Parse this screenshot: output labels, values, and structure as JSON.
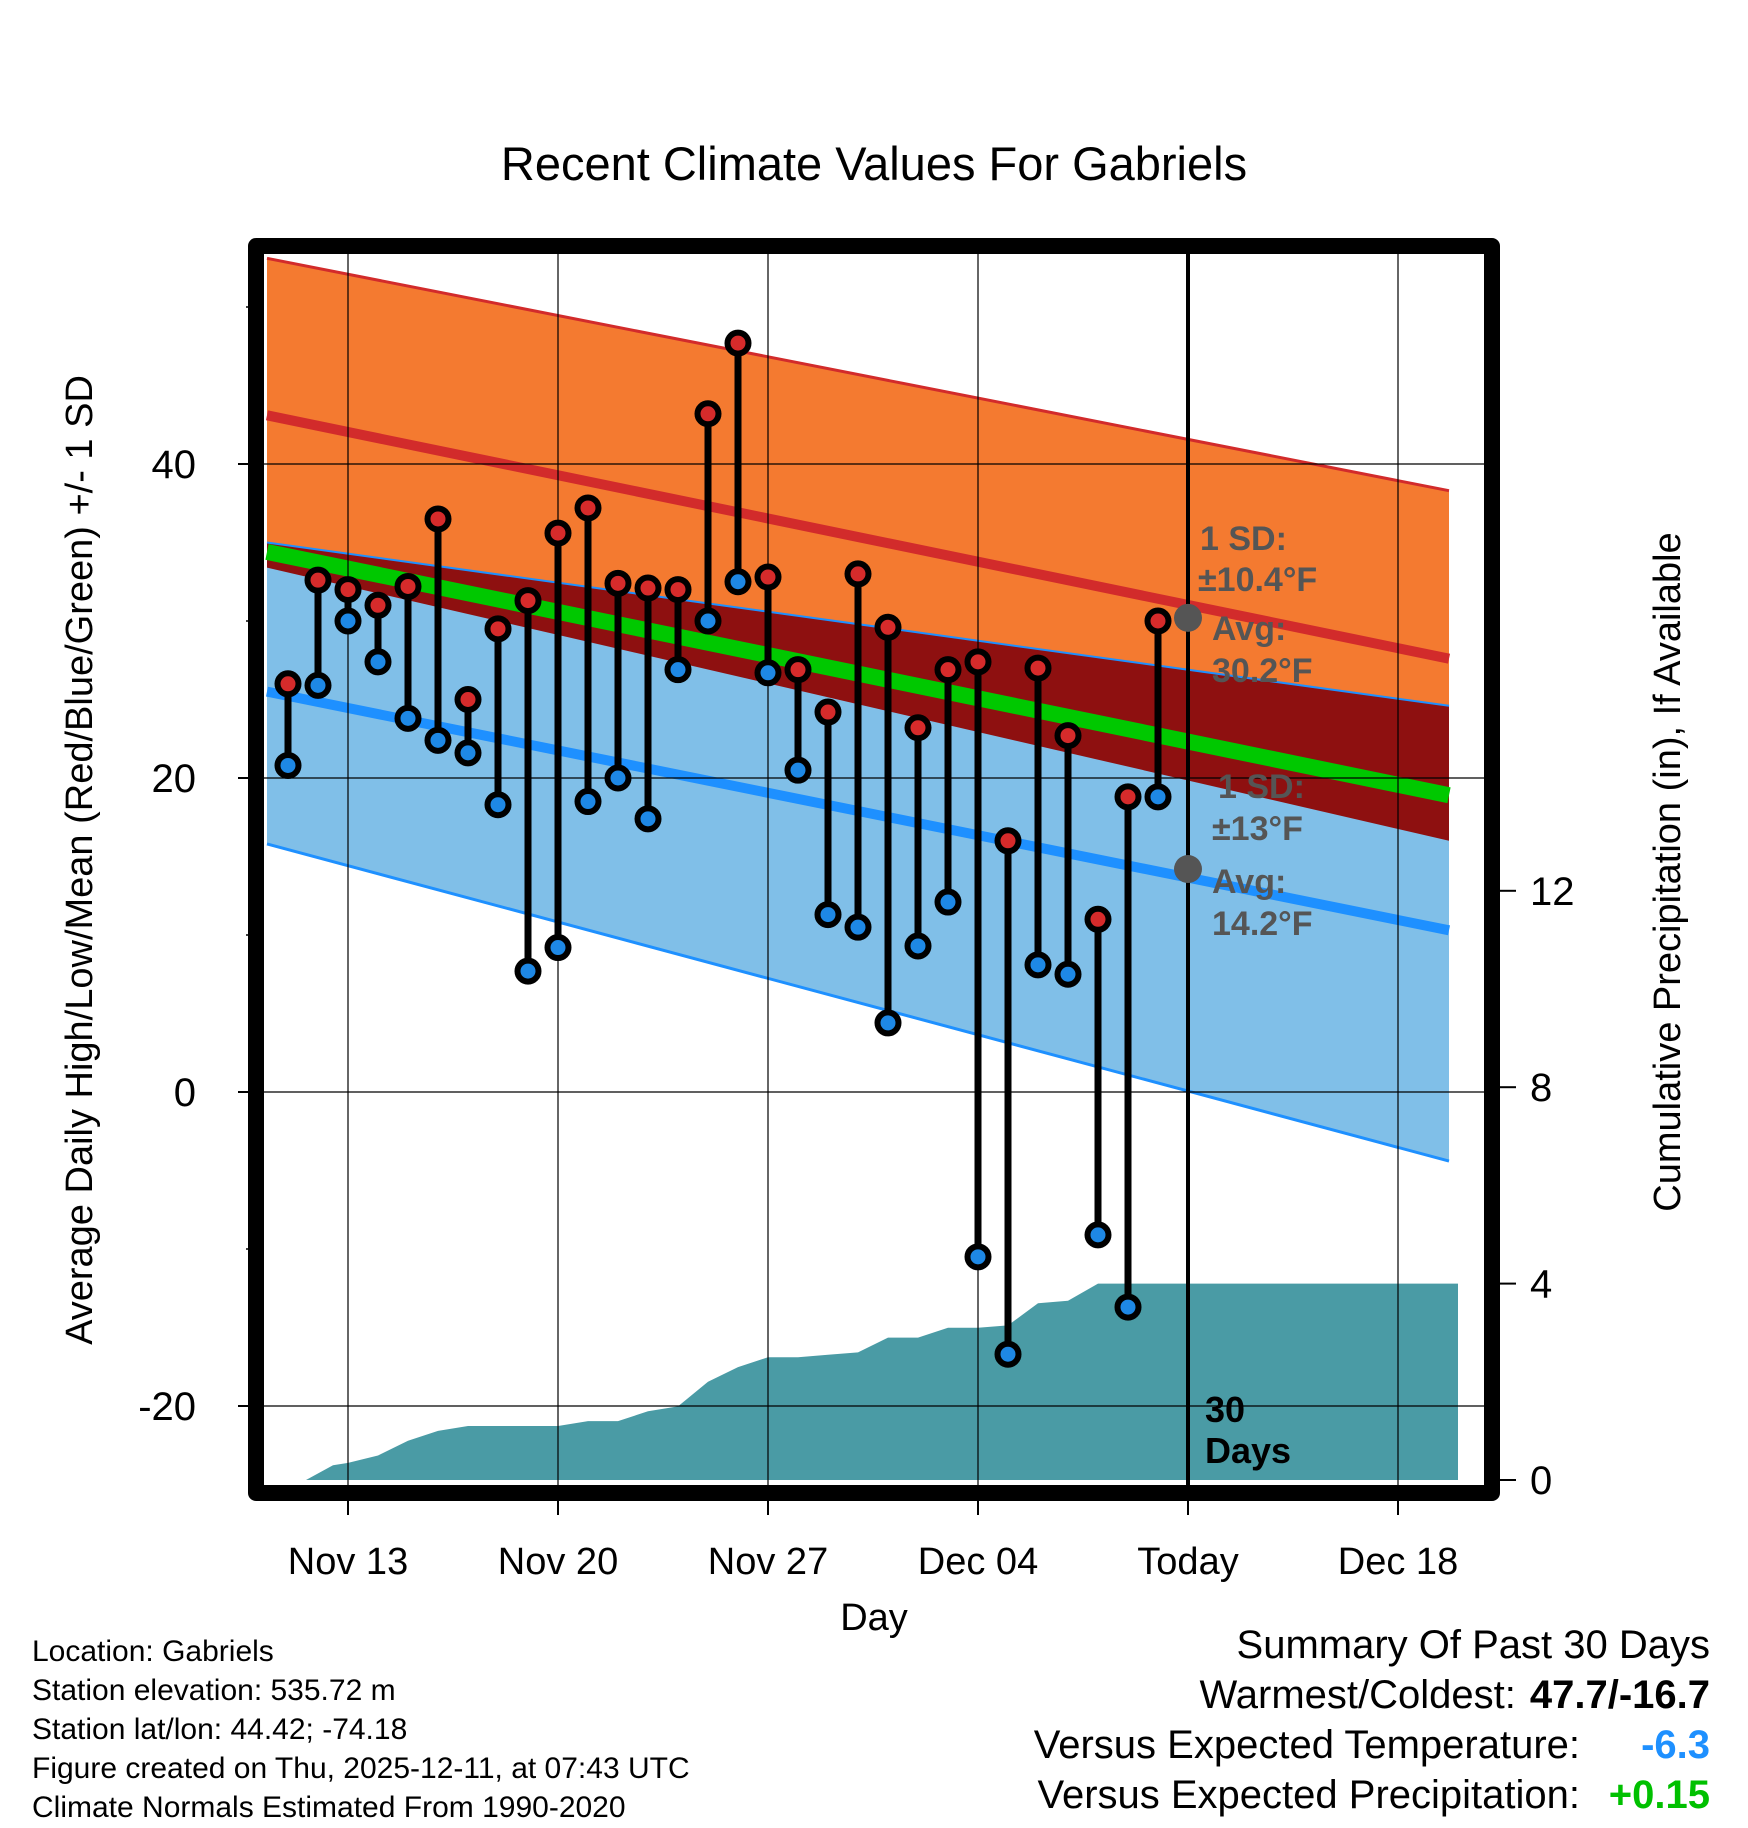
{
  "chart_data": {
    "type": "line",
    "title": "Recent Climate Values For Gabriels",
    "xlabel": "Day",
    "ylabel": "Average Daily High/Low/Mean (Red/Blue/Green) +/- 1 SD",
    "y2label": "Cumulative Precipitation (in), If Available",
    "ylim": [
      -25,
      55
    ],
    "y2lim": [
      -0.3,
      25.4
    ],
    "xlim": [
      -3.3,
      37.3
    ],
    "x_ticks": [
      {
        "day": 0,
        "label": "Nov 13"
      },
      {
        "day": 7,
        "label": "Nov 20"
      },
      {
        "day": 14,
        "label": "Nov 27"
      },
      {
        "day": 21,
        "label": "Dec 04"
      },
      {
        "day": 28,
        "label": "Today"
      },
      {
        "day": 35,
        "label": "Dec 18"
      }
    ],
    "y_ticks": [
      -20,
      0,
      20,
      40
    ],
    "y2_ticks": [
      0,
      4,
      8,
      12
    ],
    "today_day": 28,
    "today_label": [
      "30",
      "Days"
    ],
    "normals": {
      "high_mean": {
        "start": [
          -2.7,
          43.1
        ],
        "end": [
          36.7,
          27.6
        ]
      },
      "high_upper": {
        "start": [
          -2.7,
          53.1
        ],
        "end": [
          36.7,
          38.3
        ]
      },
      "low_mean": {
        "start": [
          -2.7,
          25.5
        ],
        "end": [
          36.7,
          10.3
        ]
      },
      "low_lower": {
        "start": [
          -2.7,
          15.8
        ],
        "end": [
          36.7,
          -4.4
        ]
      },
      "mean": {
        "start": [
          -2.7,
          34.4
        ],
        "end": [
          36.7,
          18.9
        ]
      },
      "red_band_top": {
        "start": [
          -2.7,
          35.0
        ],
        "end": [
          36.7,
          24.6
        ]
      },
      "red_band_bottom": {
        "start": [
          -2.7,
          33.4
        ],
        "end": [
          36.7,
          16.0
        ]
      }
    },
    "series": [
      {
        "name": "Daily High",
        "color": "#d62b2b",
        "values": [
          26.0,
          32.6,
          32.0,
          31.0,
          32.2,
          36.5,
          25.0,
          29.5,
          31.3,
          35.6,
          37.2,
          32.4,
          32.1,
          32.0,
          43.2,
          47.7,
          32.8,
          26.9,
          24.2,
          33.0,
          29.6,
          23.2,
          26.9,
          27.4,
          16.0,
          27.0,
          22.7,
          11.0,
          18.8,
          30.0
        ]
      },
      {
        "name": "Daily Low",
        "color": "#1e88e5",
        "values": [
          20.8,
          25.9,
          30.0,
          27.4,
          23.8,
          22.4,
          21.6,
          18.3,
          7.7,
          9.2,
          18.5,
          20.0,
          17.4,
          26.9,
          30.0,
          32.5,
          26.7,
          20.5,
          11.3,
          10.5,
          4.4,
          9.3,
          12.1,
          -10.5,
          -16.7,
          8.1,
          7.5,
          -9.1,
          -13.7,
          18.8
        ]
      }
    ],
    "days": [
      -2,
      -1,
      0,
      1,
      2,
      3,
      4,
      5,
      6,
      7,
      8,
      9,
      10,
      11,
      12,
      13,
      14,
      15,
      16,
      17,
      18,
      19,
      20,
      21,
      22,
      23,
      24,
      25,
      26,
      27
    ],
    "precipitation": {
      "name": "Cumulative Precipitation",
      "color": "#4a9ba5",
      "days": [
        -2.7,
        -1.4,
        -0.5,
        0,
        1,
        2,
        3,
        4,
        5,
        6,
        7,
        8,
        9,
        10,
        11,
        12,
        13,
        14,
        15,
        16,
        17,
        18,
        19,
        20,
        21,
        22,
        23,
        24,
        25,
        26,
        27,
        28,
        37
      ],
      "values": [
        0.0,
        0.0,
        0.3,
        0.35,
        0.5,
        0.8,
        1.0,
        1.1,
        1.1,
        1.1,
        1.1,
        1.2,
        1.2,
        1.4,
        1.5,
        2.0,
        2.3,
        2.5,
        2.5,
        2.55,
        2.6,
        2.9,
        2.9,
        3.1,
        3.1,
        3.15,
        3.6,
        3.65,
        4.0,
        4.0,
        4.0,
        4.0,
        4.0
      ]
    },
    "annotations": {
      "high": {
        "sd_label": "1 SD:",
        "sd_value": "±10.4°F",
        "avg_label": "Avg:",
        "avg_value": "30.2°F",
        "avg": 30.2
      },
      "low": {
        "sd_label": "1 SD:",
        "sd_value": "±13°F",
        "avg_label": "Avg:",
        "avg_value": "14.2°F",
        "avg": 14.2
      }
    },
    "colors": {
      "high_band": "#f47a30",
      "high_line": "#d22b2b",
      "red_band": "#8e1010",
      "green_line": "#00c800",
      "low_band": "#80bfe8",
      "low_line": "#1e90ff",
      "precip": "#4a9ba5",
      "annotation": "#555555"
    }
  },
  "footer": {
    "lines": [
      "Location: Gabriels",
      "Station elevation: 535.72 m",
      "Station lat/lon: 44.42; -74.18",
      "Figure created on Thu, 2025-12-11, at 07:43 UTC",
      "Climate Normals Estimated From 1990-2020"
    ]
  },
  "summary": {
    "title": "Summary Of Past 30 Days",
    "warmest_coldest_label": "Warmest/Coldest:",
    "warmest_coldest_value": "47.7/-16.7",
    "temp_label": "Versus Expected Temperature:",
    "temp_value": "-6.3",
    "temp_color": "#1e90ff",
    "precip_label": "Versus Expected Precipitation:",
    "precip_value": "+0.15",
    "precip_color": "#00c000"
  }
}
